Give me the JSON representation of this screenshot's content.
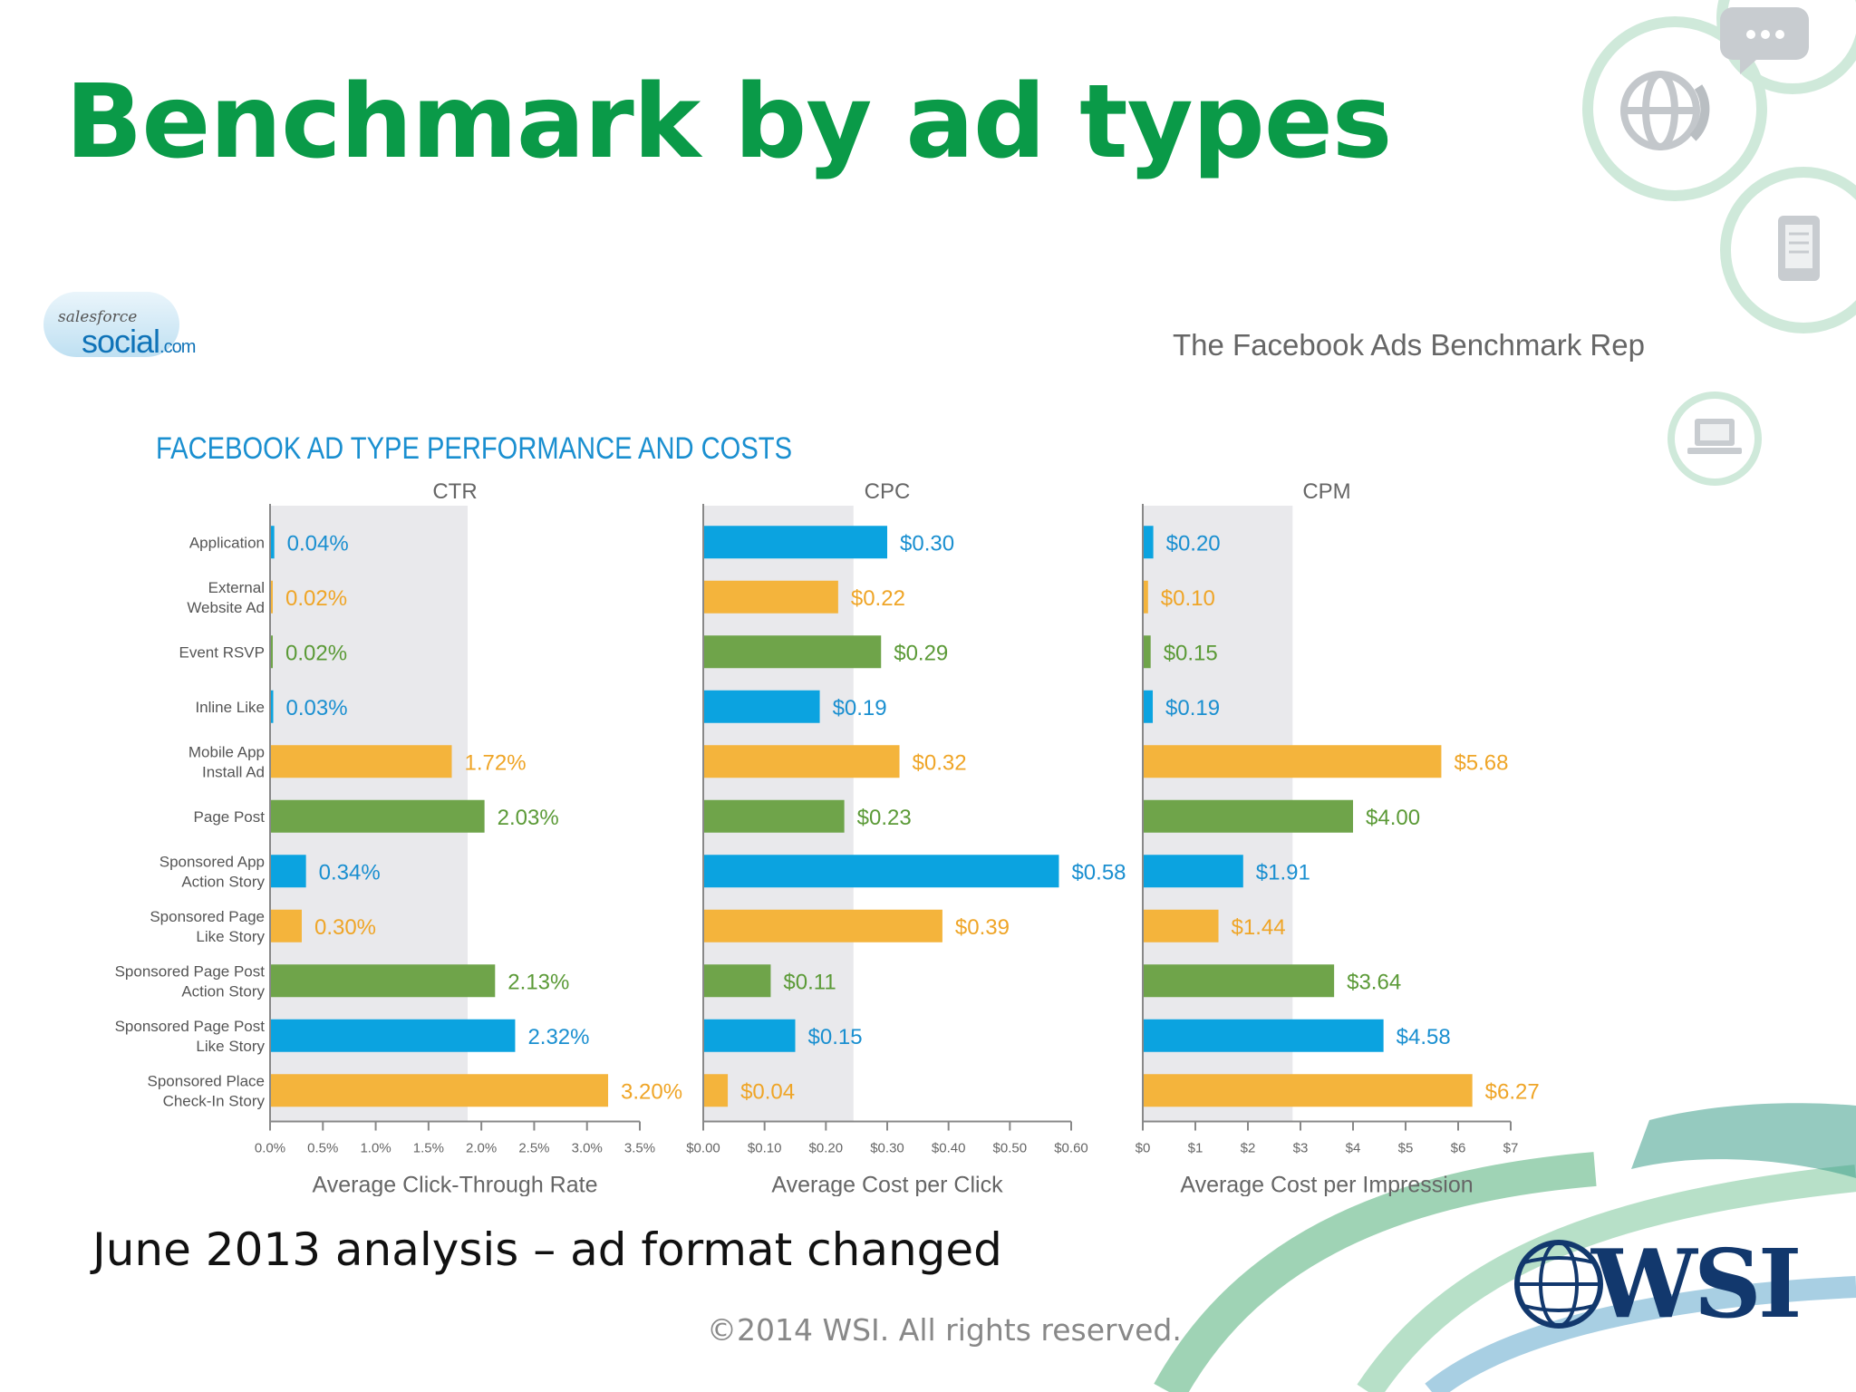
{
  "slide": {
    "title": "Benchmark by ad types",
    "note": "June 2013 analysis – ad format changed",
    "copyright": "©2014 WSI. All rights reserved."
  },
  "source": {
    "logo_top": "salesforce",
    "logo_main": "social",
    "logo_suffix": ".com",
    "report_title": "The Facebook Ads Benchmark Report"
  },
  "brand": {
    "wsi_logo": "WSI"
  },
  "icons": [
    "chat-icon",
    "globe-icon",
    "tablet-icon",
    "laptop-icon"
  ],
  "colors": {
    "title_green": "#0a9a48",
    "chart_title_blue": "#1a8fd0",
    "blue": "#0ba3e0",
    "orange": "#f4b43c",
    "green": "#6fa44a",
    "shade": "#e9e9ec",
    "value_blue": "#1a8fd0",
    "value_orange": "#efa527",
    "value_green": "#5b9a37"
  },
  "chart_data": {
    "title": "FACEBOOK AD TYPE PERFORMANCE AND COSTS",
    "categories": [
      "Application",
      "External Website Ad",
      "Event RSVP",
      "Inline Like",
      "Mobile App Install Ad",
      "Page Post",
      "Sponsored App Action Story",
      "Sponsored Page Like Story",
      "Sponsored Page Post Action Story",
      "Sponsored Page Post Like Story",
      "Sponsored Place Check-In Story"
    ],
    "category_lines": [
      [
        "Application"
      ],
      [
        "External",
        "Website Ad"
      ],
      [
        "Event RSVP"
      ],
      [
        "Inline Like"
      ],
      [
        "Mobile App",
        "Install Ad"
      ],
      [
        "Page Post"
      ],
      [
        "Sponsored App",
        "Action Story"
      ],
      [
        "Sponsored Page",
        "Like Story"
      ],
      [
        "Sponsored Page Post",
        "Action Story"
      ],
      [
        "Sponsored Page Post",
        "Like Story"
      ],
      [
        "Sponsored Place",
        "Check-In Story"
      ]
    ],
    "bar_colors": [
      "blue",
      "orange",
      "green",
      "blue",
      "orange",
      "green",
      "blue",
      "orange",
      "green",
      "blue",
      "orange"
    ],
    "panels": [
      {
        "type": "bar",
        "orientation": "horizontal",
        "title": "CTR",
        "xlabel": "Average Click-Through Rate",
        "xlim": [
          0,
          3.5
        ],
        "shaded_to": 1.87,
        "ticks": [
          0,
          0.5,
          1.0,
          1.5,
          2.0,
          2.5,
          3.0,
          3.5
        ],
        "tick_labels": [
          "0.0%",
          "0.5%",
          "1.0%",
          "1.5%",
          "2.0%",
          "2.5%",
          "3.0%",
          "3.5%"
        ],
        "values": [
          0.04,
          0.02,
          0.02,
          0.03,
          1.72,
          2.03,
          0.34,
          0.3,
          2.13,
          2.32,
          3.2
        ],
        "labels": [
          "0.04%",
          "0.02%",
          "0.02%",
          "0.03%",
          "1.72%",
          "2.03%",
          "0.34%",
          "0.30%",
          "2.13%",
          "2.32%",
          "3.20%"
        ]
      },
      {
        "type": "bar",
        "orientation": "horizontal",
        "title": "CPC",
        "xlabel": "Average Cost per Click",
        "xlim": [
          0,
          0.6
        ],
        "shaded_to": 0.245,
        "ticks": [
          0,
          0.1,
          0.2,
          0.3,
          0.4,
          0.5,
          0.6
        ],
        "tick_labels": [
          "$0.00",
          "$0.10",
          "$0.20",
          "$0.30",
          "$0.40",
          "$0.50",
          "$0.60"
        ],
        "values": [
          0.3,
          0.22,
          0.29,
          0.19,
          0.32,
          0.23,
          0.58,
          0.39,
          0.11,
          0.15,
          0.04
        ],
        "labels": [
          "$0.30",
          "$0.22",
          "$0.29",
          "$0.19",
          "$0.32",
          "$0.23",
          "$0.58",
          "$0.39",
          "$0.11",
          "$0.15",
          "$0.04"
        ]
      },
      {
        "type": "bar",
        "orientation": "horizontal",
        "title": "CPM",
        "xlabel": "Average Cost per Impression",
        "xlim": [
          0,
          7
        ],
        "shaded_to": 2.85,
        "ticks": [
          0,
          1,
          2,
          3,
          4,
          5,
          6,
          7
        ],
        "tick_labels": [
          "$0",
          "$1",
          "$2",
          "$3",
          "$4",
          "$5",
          "$6",
          "$7"
        ],
        "values": [
          0.2,
          0.1,
          0.15,
          0.19,
          5.68,
          4.0,
          1.91,
          1.44,
          3.64,
          4.58,
          6.27
        ],
        "labels": [
          "$0.20",
          "$0.10",
          "$0.15",
          "$0.19",
          "$5.68",
          "$4.00",
          "$1.91",
          "$1.44",
          "$3.64",
          "$4.58",
          "$6.27"
        ]
      }
    ]
  }
}
